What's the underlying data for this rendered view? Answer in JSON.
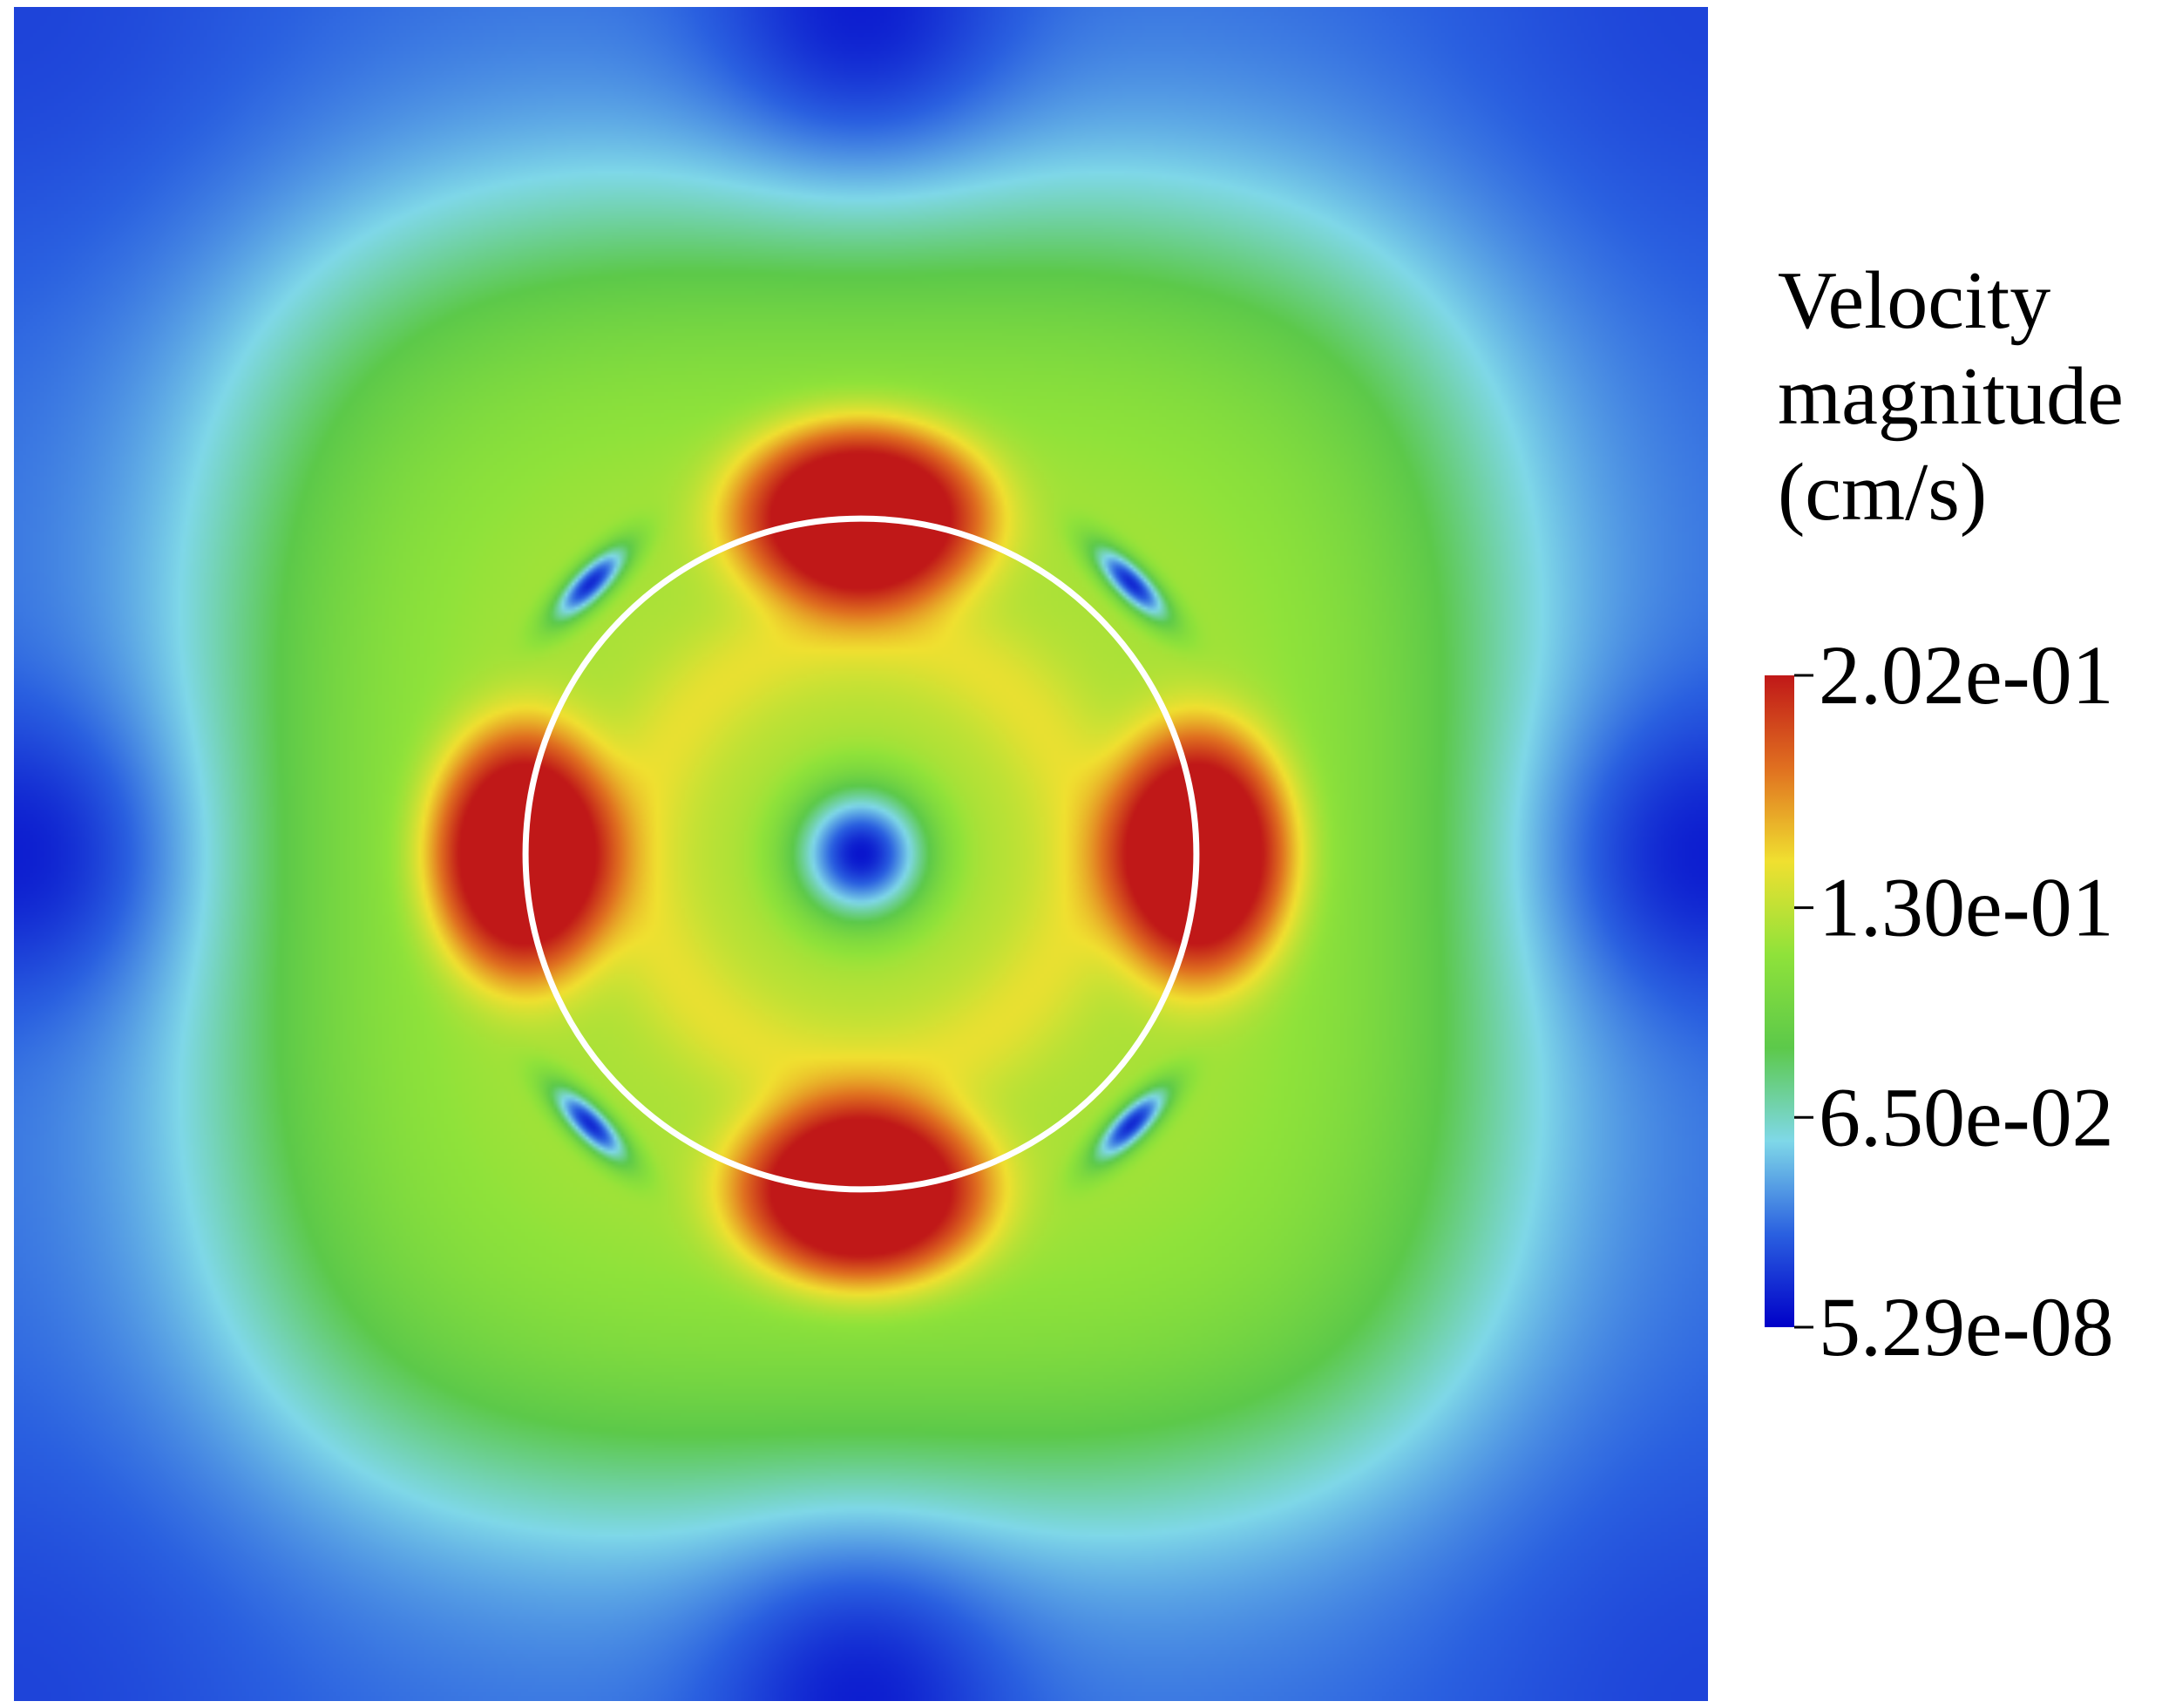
{
  "chart_data": {
    "type": "heatmap",
    "title": "",
    "xlabel": "",
    "ylabel": "",
    "grid": false,
    "colorbar": {
      "title_lines": [
        "Velocity",
        "magnitude",
        "(cm/s)"
      ],
      "min": 5.29e-08,
      "max": 0.202,
      "ticks": [
        {
          "value": 0.202,
          "label": "2.02e-01"
        },
        {
          "value": 0.13,
          "label": "1.30e-01"
        },
        {
          "value": 0.065,
          "label": "6.50e-02"
        },
        {
          "value": 5.29e-08,
          "label": "5.29e-08"
        }
      ],
      "colormap": [
        "#0000c8",
        "#2a60e0",
        "#7fd8e8",
        "#5cc94a",
        "#8fe23a",
        "#f0e030",
        "#e07020",
        "#c01818"
      ],
      "placement": "right"
    },
    "annotations": [
      {
        "type": "circle",
        "center_fraction": [
          0.5,
          0.5
        ],
        "radius_fraction": 0.198,
        "color": "#ffffff"
      }
    ],
    "pattern": "four high-velocity lobes on the circle boundary at top, bottom, left and right; low-velocity center and four small minima on the diagonals"
  }
}
